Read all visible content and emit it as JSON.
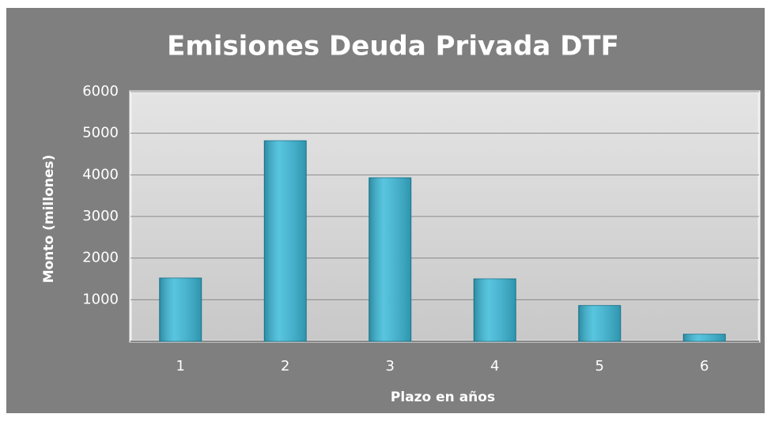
{
  "chart_data": {
    "type": "bar",
    "title": "Emisiones Deuda Privada DTF",
    "x_label": "Plazo en años",
    "y_label": "Monto (millones)",
    "categories": [
      "1",
      "2",
      "3",
      "4",
      "5",
      "6"
    ],
    "values": [
      1520,
      4820,
      3930,
      1500,
      860,
      170
    ],
    "color": "#3bbad9",
    "ylim": [
      0,
      6000
    ],
    "yticks": [
      1000,
      2000,
      3000,
      4000,
      5000,
      6000
    ],
    "grid": true
  }
}
